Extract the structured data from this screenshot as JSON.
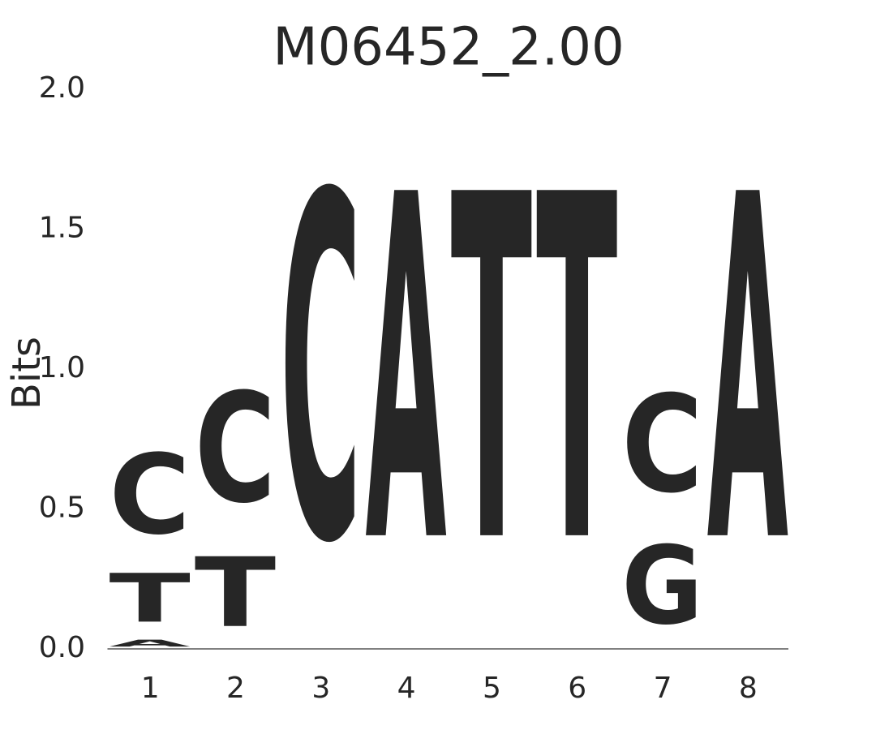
{
  "chart_data": {
    "type": "logo",
    "title": "M06452_2.00",
    "y_label": "Bits",
    "categories": [
      "1",
      "2",
      "3",
      "4",
      "5",
      "6",
      "7",
      "8"
    ],
    "series": [
      {
        "name": "A",
        "color": "#008000",
        "values": [
          0.04,
          0,
          0,
          1.98,
          0,
          0,
          0,
          1.98
        ]
      },
      {
        "name": "G",
        "color": "#ffa500",
        "values": [
          0,
          0,
          0,
          0,
          0,
          0,
          0.45,
          0
        ]
      },
      {
        "name": "T",
        "color": "#ff0000",
        "values": [
          0.28,
          0.4,
          0,
          0,
          1.98,
          1.98,
          0,
          0
        ]
      },
      {
        "name": "C",
        "color": "#0000ff",
        "values": [
          0.46,
          0.63,
          1.98,
          0,
          0,
          0,
          0.56,
          0
        ]
      }
    ],
    "ylim": [
      0,
      2
    ],
    "yticks": [
      {
        "value": 0,
        "label": "0.0"
      },
      {
        "value": 0.5,
        "label": "0.5"
      },
      {
        "value": 1,
        "label": "1.0"
      },
      {
        "value": 1.5,
        "label": "1.5"
      },
      {
        "value": 2,
        "label": "2.0"
      }
    ]
  }
}
